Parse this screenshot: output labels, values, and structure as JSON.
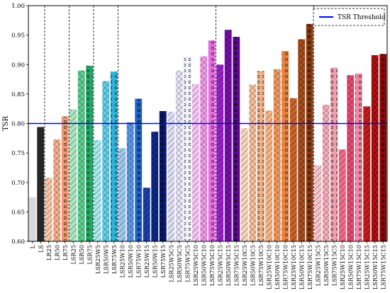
{
  "chart_data": {
    "type": "bar",
    "ylabel": "TSR",
    "ylim": [
      0.6,
      1.0
    ],
    "yticks": [
      0.6,
      0.65,
      0.7,
      0.75,
      0.8,
      0.85,
      0.9,
      0.95,
      1.0
    ],
    "grid": false,
    "legend_position": "top-right",
    "threshold": {
      "label": "TSR Threshold",
      "value": 0.8,
      "color": "#0000ff"
    },
    "group_separators_after_index": [
      1,
      4,
      7,
      10,
      22,
      34
    ],
    "bars": [
      {
        "label": "L",
        "value": 0.675,
        "color": "#d9d9d9"
      },
      {
        "label": "LS",
        "value": 0.794,
        "color": "#262626"
      },
      {
        "label": "LR25",
        "value": 0.708,
        "color": "#f6c3a4"
      },
      {
        "label": "LR50",
        "value": 0.773,
        "color": "#f4b28e"
      },
      {
        "label": "LR75",
        "value": 0.812,
        "color": "#f19a72"
      },
      {
        "label": "LSR25",
        "value": 0.824,
        "color": "#a8e6c2"
      },
      {
        "label": "LSR50",
        "value": 0.89,
        "color": "#5fce92"
      },
      {
        "label": "LSR75",
        "value": 0.898,
        "color": "#1fa866"
      },
      {
        "label": "LSR25W5",
        "value": 0.772,
        "color": "#a8e6f0"
      },
      {
        "label": "LSR50W5",
        "value": 0.872,
        "color": "#66cfe6"
      },
      {
        "label": "LSR75W5",
        "value": 0.888,
        "color": "#2cb4dc"
      },
      {
        "label": "LSR25W10",
        "value": 0.758,
        "color": "#9fc5f0"
      },
      {
        "label": "LSR50W10",
        "value": 0.802,
        "color": "#5a98e6"
      },
      {
        "label": "LSR75W10",
        "value": 0.842,
        "color": "#1f64c8"
      },
      {
        "label": "LSR25W15",
        "value": 0.691,
        "color": "#1a3ea8"
      },
      {
        "label": "LSR50W15",
        "value": 0.786,
        "color": "#0d2a8a"
      },
      {
        "label": "LSR75W15",
        "value": 0.821,
        "color": "#08186e"
      },
      {
        "label": "LSR25W5C5",
        "value": 0.82,
        "color": "#dcdcf4"
      },
      {
        "label": "LSR50W5C5",
        "value": 0.89,
        "color": "#e6e6f8"
      },
      {
        "label": "LSR75W5C5",
        "value": 0.913,
        "color": "#f0f0fb"
      },
      {
        "label": "LSR25W5C10",
        "value": 0.867,
        "color": "#f6c2f2"
      },
      {
        "label": "LSR50W5C10",
        "value": 0.914,
        "color": "#f09be8"
      },
      {
        "label": "LSR75W5C10",
        "value": 0.941,
        "color": "#e56de0"
      },
      {
        "label": "LSR25W5C15",
        "value": 0.9,
        "color": "#9b1fc8"
      },
      {
        "label": "LSR50W5C15",
        "value": 0.959,
        "color": "#7a0fb0"
      },
      {
        "label": "LSR75W5C15",
        "value": 0.947,
        "color": "#5a078c"
      },
      {
        "label": "LSR25W10C5",
        "value": 0.792,
        "color": "#f8d4b8"
      },
      {
        "label": "LSR50W10C5",
        "value": 0.866,
        "color": "#f6c29e"
      },
      {
        "label": "LSR75W10C5",
        "value": 0.889,
        "color": "#f3b084"
      },
      {
        "label": "LSR25W10C10",
        "value": 0.822,
        "color": "#f4b286"
      },
      {
        "label": "LSR50W10C10",
        "value": 0.892,
        "color": "#f09a62"
      },
      {
        "label": "LSR75W10C10",
        "value": 0.923,
        "color": "#e8823e"
      },
      {
        "label": "LSR25W10C15",
        "value": 0.843,
        "color": "#c8642a"
      },
      {
        "label": "LSR50W10C15",
        "value": 0.943,
        "color": "#a84e1c"
      },
      {
        "label": "LSR75W10C15",
        "value": 0.969,
        "color": "#8a3a10"
      },
      {
        "label": "LSR25W15C5",
        "value": 0.729,
        "color": "#f8c4cc"
      },
      {
        "label": "LSR50W15C5",
        "value": 0.832,
        "color": "#f6b0bc"
      },
      {
        "label": "LSR75W15C5",
        "value": 0.895,
        "color": "#f39cac"
      },
      {
        "label": "LSR25W15C10",
        "value": 0.756,
        "color": "#f06a8a"
      },
      {
        "label": "LSR50W15C10",
        "value": 0.882,
        "color": "#e84a72"
      },
      {
        "label": "LSR75W15C10",
        "value": 0.885,
        "color": "#f28aa2"
      },
      {
        "label": "LSR25W15C15",
        "value": 0.829,
        "color": "#c81a1a"
      },
      {
        "label": "LSR50W15C15",
        "value": 0.916,
        "color": "#b01010"
      },
      {
        "label": "LSR75W15C15",
        "value": 0.918,
        "color": "#8c0808"
      }
    ]
  }
}
